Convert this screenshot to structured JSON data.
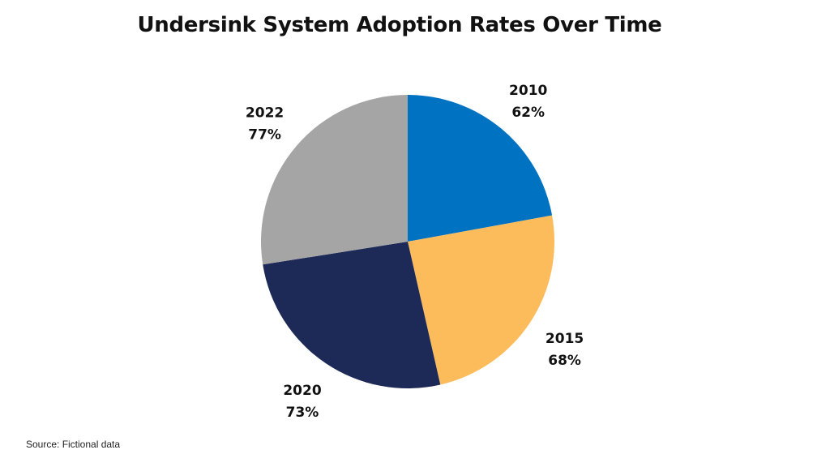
{
  "chart_data": {
    "type": "pie",
    "title": "Undersink System Adoption Rates Over Time",
    "categories": [
      "2010",
      "2015",
      "2020",
      "2022"
    ],
    "values": [
      62,
      68,
      73,
      77
    ],
    "value_labels": [
      "62%",
      "68%",
      "73%",
      "77%"
    ],
    "colors": [
      "#0072c2",
      "#fdbc5b",
      "#1d2a57",
      "#a5a5a5"
    ],
    "start_angle": "12 o'clock",
    "direction": "clockwise",
    "legend": "none",
    "xlabel": "",
    "ylabel": ""
  },
  "source": "Source: Fictional data"
}
